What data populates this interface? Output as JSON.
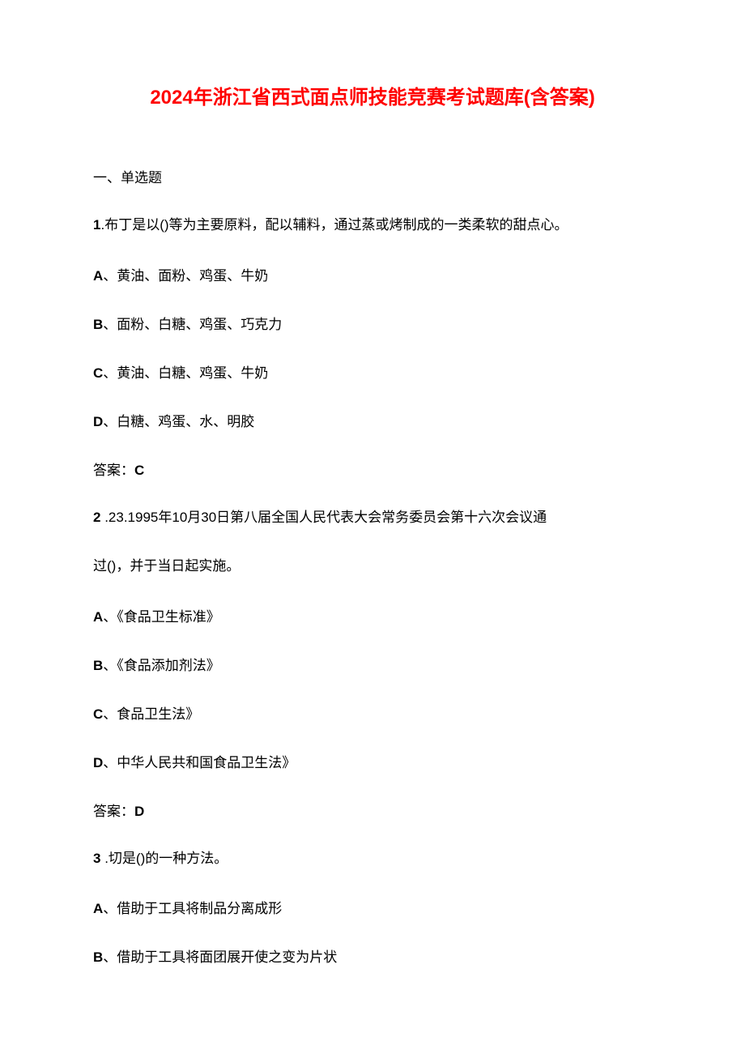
{
  "title": "2024年浙江省西式面点师技能竞赛考试题库(含答案)",
  "section_header": "一、单选题",
  "q1": {
    "number": "1",
    "text": ".布丁是以()等为主要原料，配以辅料，通过蒸或烤制成的一类柔软的甜点心。",
    "option_a_label": "A",
    "option_a_text": "、黄油、面粉、鸡蛋、牛奶",
    "option_b_label": "B",
    "option_b_text": "、面粉、白糖、鸡蛋、巧克力",
    "option_c_label": "C",
    "option_c_text": "、黄油、白糖、鸡蛋、牛奶",
    "option_d_label": "D",
    "option_d_text": "、白糖、鸡蛋、水、明胶",
    "answer_label": "答案：",
    "answer_value": "C"
  },
  "q2": {
    "number": "2",
    "text_line1": "  .23.1995年10月30日第八届全国人民代表大会常务委员会第十六次会议通",
    "text_line2": "过()，并于当日起实施。",
    "option_a_label": "A",
    "option_a_text": "、《食品卫生标准》",
    "option_b_label": "B",
    "option_b_text": "、《食品添加剂法》",
    "option_c_label": "C",
    "option_c_text": "、食品卫生法》",
    "option_d_label": "D",
    "option_d_text": "、中华人民共和国食品卫生法》",
    "answer_label": "答案：",
    "answer_value": "D"
  },
  "q3": {
    "number": "3",
    "text": "  .切是()的一种方法。",
    "option_a_label": "A",
    "option_a_text": "、借助于工具将制品分离成形",
    "option_b_label": "B",
    "option_b_text": "、借助于工具将面团展开使之变为片状"
  },
  "colors": {
    "title_color": "#ff0000",
    "text_color": "#000000",
    "background_color": "#ffffff"
  },
  "typography": {
    "title_fontsize": 24,
    "body_fontsize": 17,
    "line_spacing": 35
  }
}
